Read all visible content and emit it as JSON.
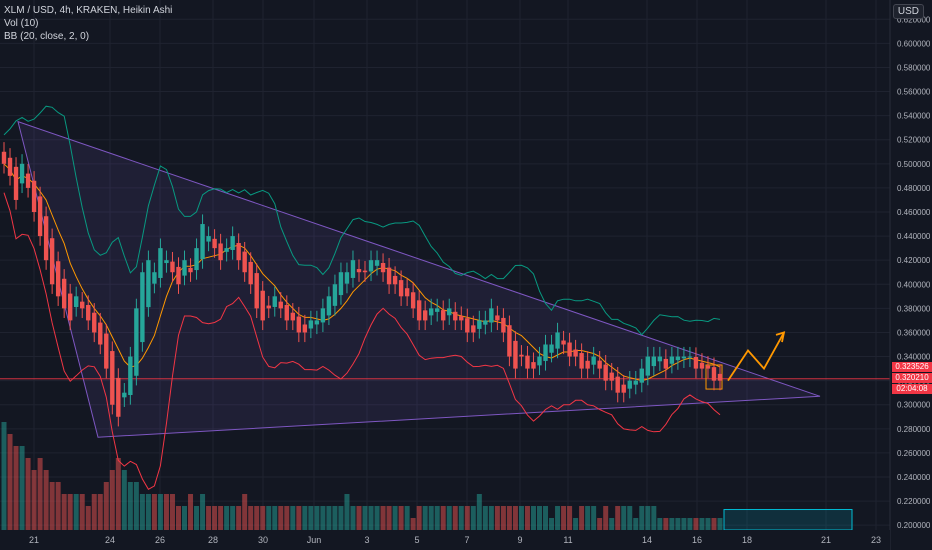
{
  "legend": {
    "symbol": "XLM / USD, 4h, KRAKEN, Heikin Ashi",
    "volume": "Vol (10)",
    "bb": "BB (20, close, 2, 0)"
  },
  "currency": "USD",
  "price_tags": [
    "0.323526",
    "0.320210",
    "02:04:08"
  ],
  "colors": {
    "background": "#131722",
    "up": "#26a69a",
    "down": "#ef5350",
    "bb_upper": "#089981",
    "bb_lower": "#f23645",
    "bb_basis": "#ff9800",
    "triangle": "#7e57c2",
    "price_line": "#f23645",
    "arrow": "#ff9800",
    "box": "#00bcd4"
  },
  "chart_data": {
    "type": "candlestick",
    "x_ticks": [
      "21",
      "24",
      "26",
      "28",
      "30",
      "Jun",
      "3",
      "5",
      "7",
      "9",
      "11",
      "14",
      "16",
      "18",
      "21",
      "23"
    ],
    "y_ticks": [
      "0.620000",
      "0.600000",
      "0.580000",
      "0.560000",
      "0.540000",
      "0.520000",
      "0.500000",
      "0.480000",
      "0.460000",
      "0.440000",
      "0.420000",
      "0.400000",
      "0.380000",
      "0.360000",
      "0.340000",
      "0.320000",
      "0.300000",
      "0.280000",
      "0.260000",
      "0.240000",
      "0.220000",
      "0.200000"
    ],
    "y_range": [
      0.196,
      0.636
    ],
    "price_line": 0.3215,
    "close_series": [
      0.5,
      0.49,
      0.47,
      0.5,
      0.48,
      0.46,
      0.44,
      0.42,
      0.4,
      0.39,
      0.38,
      0.37,
      0.39,
      0.38,
      0.37,
      0.36,
      0.35,
      0.33,
      0.3,
      0.29,
      0.31,
      0.34,
      0.38,
      0.41,
      0.42,
      0.41,
      0.43,
      0.42,
      0.41,
      0.4,
      0.42,
      0.41,
      0.43,
      0.45,
      0.44,
      0.43,
      0.42,
      0.43,
      0.44,
      0.42,
      0.41,
      0.4,
      0.38,
      0.37,
      0.38,
      0.39,
      0.38,
      0.37,
      0.37,
      0.36,
      0.36,
      0.37,
      0.37,
      0.38,
      0.39,
      0.4,
      0.41,
      0.41,
      0.42,
      0.41,
      0.41,
      0.42,
      0.42,
      0.41,
      0.4,
      0.4,
      0.39,
      0.39,
      0.38,
      0.37,
      0.37,
      0.38,
      0.38,
      0.37,
      0.38,
      0.37,
      0.37,
      0.36,
      0.36,
      0.37,
      0.37,
      0.38,
      0.37,
      0.36,
      0.34,
      0.33,
      0.34,
      0.33,
      0.33,
      0.34,
      0.35,
      0.35,
      0.36,
      0.35,
      0.34,
      0.34,
      0.33,
      0.33,
      0.34,
      0.33,
      0.32,
      0.32,
      0.31,
      0.31,
      0.32,
      0.32,
      0.33,
      0.34,
      0.34,
      0.34,
      0.33,
      0.34,
      0.34,
      0.34,
      0.34,
      0.33,
      0.33,
      0.33,
      0.32,
      0.32
    ],
    "volume": [
      9,
      8,
      7,
      7,
      6,
      5,
      6,
      5,
      4,
      4,
      3,
      3,
      3,
      3,
      2,
      3,
      3,
      4,
      5,
      6,
      5,
      4,
      4,
      3,
      3,
      3,
      3,
      3,
      3,
      2,
      2,
      3,
      2,
      3,
      2,
      2,
      2,
      2,
      2,
      2,
      3,
      2,
      2,
      2,
      2,
      2,
      2,
      2,
      2,
      2,
      2,
      2,
      2,
      2,
      2,
      2,
      2,
      3,
      2,
      2,
      2,
      2,
      2,
      2,
      2,
      2,
      2,
      2,
      1,
      2,
      2,
      2,
      2,
      2,
      2,
      2,
      2,
      2,
      2,
      3,
      2,
      2,
      2,
      2,
      2,
      2,
      2,
      2,
      2,
      2,
      2,
      1,
      2,
      2,
      2,
      1,
      2,
      2,
      2,
      1,
      2,
      1,
      2,
      2,
      2,
      1,
      2,
      2,
      2,
      1,
      1,
      1,
      1,
      1,
      1,
      1,
      1,
      1,
      1,
      1
    ],
    "triangle": {
      "apex": {
        "date": "22",
        "price": 0.307
      },
      "upper_start": {
        "date": "21",
        "price": 0.535
      },
      "lower_start": {
        "date": "23",
        "price": 0.273
      }
    },
    "projection_path": [
      0.32,
      0.345,
      0.33,
      0.36
    ],
    "box_range": [
      0.196,
      0.213
    ]
  }
}
